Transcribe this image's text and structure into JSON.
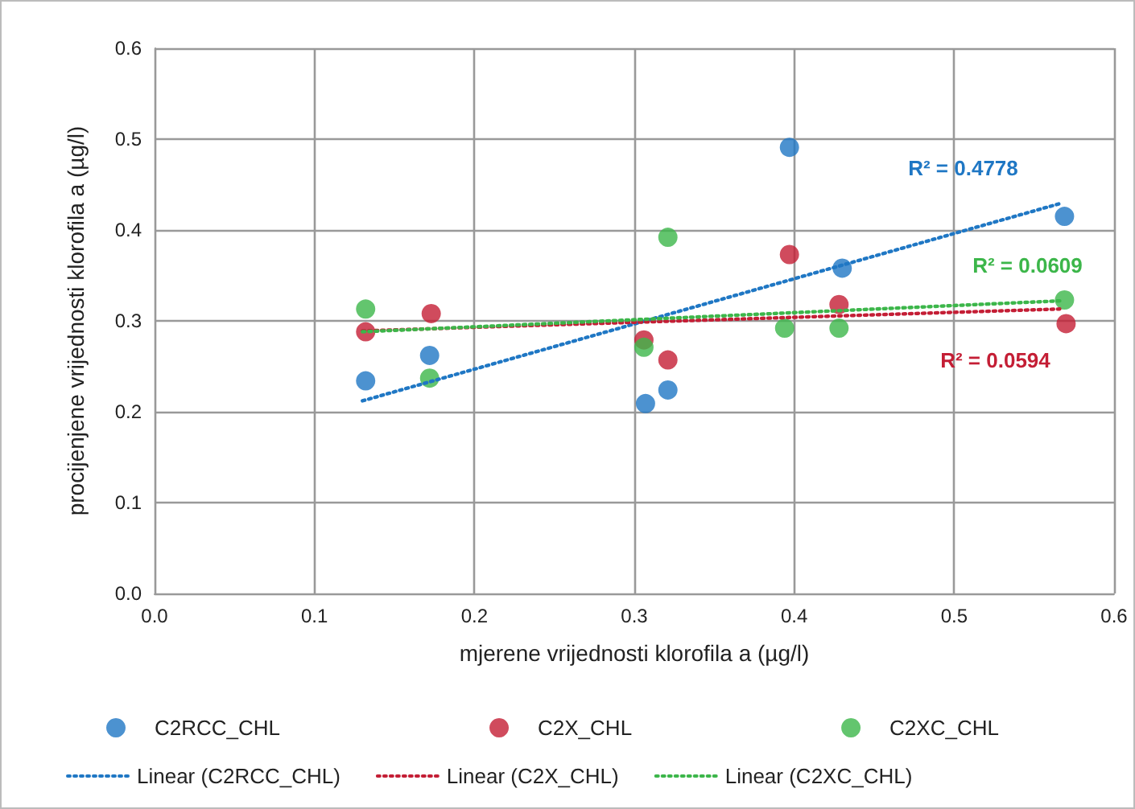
{
  "chart_data": {
    "type": "scatter",
    "xlabel": "mjerene vrijednosti klorofila a (µg/l)",
    "ylabel": "procijenjene vrijednosti klorofila a (µg/l)",
    "xlim": [
      0,
      0.6
    ],
    "ylim": [
      0,
      0.6
    ],
    "xticks": [
      {
        "value": 0,
        "label": "0.0"
      },
      0.1,
      0.2,
      0.3,
      0.4,
      0.5,
      0.6
    ],
    "yticks": [
      {
        "value": 0,
        "label": "0.0"
      },
      0.1,
      0.2,
      0.3,
      0.4,
      0.5,
      0.6
    ],
    "grid": true,
    "legend": "bottom",
    "marker": "circle",
    "series": [
      {
        "name": "C2RCC_CHL",
        "color": "#1f77c4",
        "x": [
          0.132,
          0.172,
          0.307,
          0.321,
          0.397,
          0.43,
          0.569
        ],
        "values": [
          0.234,
          0.262,
          0.209,
          0.224,
          0.491,
          0.358,
          0.415
        ]
      },
      {
        "name": "C2X_CHL",
        "color": "#c41e35",
        "x": [
          0.132,
          0.173,
          0.306,
          0.321,
          0.397,
          0.428,
          0.57
        ],
        "values": [
          0.288,
          0.308,
          0.279,
          0.257,
          0.373,
          0.318,
          0.297
        ]
      },
      {
        "name": "C2XC_CHL",
        "color": "#3cb64a",
        "x": [
          0.132,
          0.172,
          0.306,
          0.321,
          0.394,
          0.428,
          0.569
        ],
        "values": [
          0.313,
          0.237,
          0.271,
          0.392,
          0.292,
          0.292,
          0.323
        ]
      },
      {
        "name": "Linear (C2RCC_CHL)",
        "type": "line",
        "marker": "none",
        "line_style": "dotted",
        "color": "#1f77c4",
        "x": [
          0.13,
          0.566
        ],
        "values": [
          0.212,
          0.429
        ]
      },
      {
        "name": "Linear (C2X_CHL)",
        "type": "line",
        "marker": "none",
        "line_style": "dotted",
        "color": "#c41e35",
        "x": [
          0.13,
          0.566
        ],
        "values": [
          0.289,
          0.313
        ]
      },
      {
        "name": "Linear (C2XC_CHL)",
        "type": "line",
        "marker": "none",
        "line_style": "dotted",
        "color": "#3cb64a",
        "x": [
          0.13,
          0.566
        ],
        "values": [
          0.288,
          0.322
        ]
      }
    ],
    "annotations": [
      "R² = 0.4778",
      "R² = 0.0594",
      "R² = 0.0609"
    ]
  }
}
